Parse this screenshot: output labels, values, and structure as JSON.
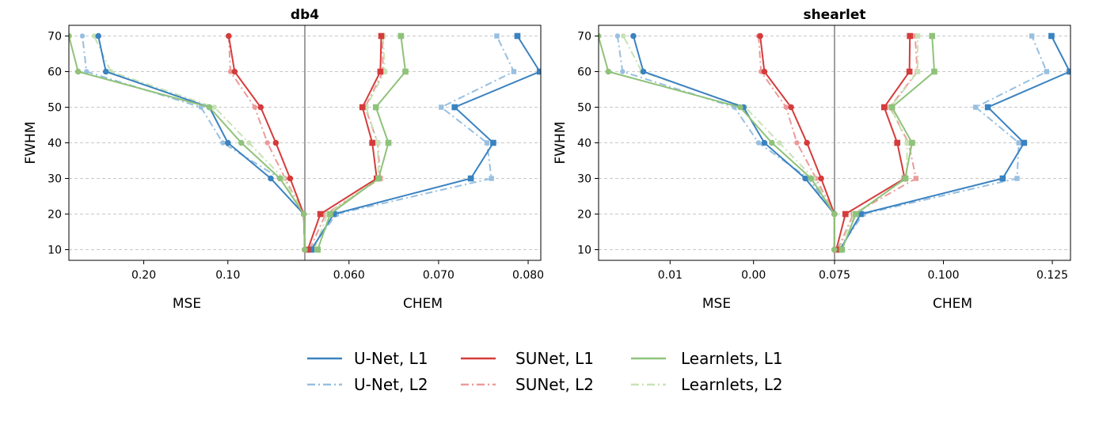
{
  "legend": {
    "placement": "bottom-center",
    "entries": [
      {
        "label": "U-Net, L1",
        "color": "#3a82c0",
        "style": "solid"
      },
      {
        "label": "SUNet, L1",
        "color": "#d63b3b",
        "style": "solid"
      },
      {
        "label": "Learnlets, L1",
        "color": "#8fc27a",
        "style": "solid"
      },
      {
        "label": "U-Net, L2",
        "color": "#97bfe0",
        "style": "dashdot"
      },
      {
        "label": "SUNet, L2",
        "color": "#eb9a9a",
        "style": "dashdot"
      },
      {
        "label": "Learnlets, L2",
        "color": "#c7e2b5",
        "style": "dashdot"
      }
    ]
  },
  "chart_data": [
    {
      "type": "line",
      "title": "db4",
      "ylabel": "FWHM",
      "y": [
        10,
        20,
        30,
        40,
        50,
        60,
        70
      ],
      "ylim": [
        7,
        73
      ],
      "yticks": [
        "10",
        "20",
        "30",
        "40",
        "50",
        "60",
        "70"
      ],
      "grid": "horizontal dashed",
      "left": {
        "xlabel": "MSE",
        "xlim": [
          0.289,
          0.0085
        ],
        "reversed": true,
        "ticks": [
          0.2,
          0.1
        ],
        "tick_labels": [
          "0.20",
          "0.10"
        ],
        "marker": "circle"
      },
      "right": {
        "xlabel": "CHEM",
        "xlim": [
          0.05507,
          0.08141
        ],
        "ticks": [
          0.06,
          0.07,
          0.08
        ],
        "tick_labels": [
          "0.060",
          "0.070",
          "0.080"
        ],
        "marker": "square"
      },
      "series": [
        {
          "name": "U-Net, L1",
          "mse": [
            0.0085,
            0.0098,
            0.049,
            0.1,
            0.122,
            0.245,
            0.254
          ],
          "chem": [
            0.0558,
            0.0583,
            0.0736,
            0.0761,
            0.0718,
            0.0813,
            0.0788
          ]
        },
        {
          "name": "SUNet, L1",
          "mse": [
            0.0085,
            0.0098,
            0.026,
            0.043,
            0.061,
            0.092,
            0.099
          ],
          "chem": [
            0.0554,
            0.0568,
            0.0631,
            0.0626,
            0.0615,
            0.0635,
            0.0636
          ]
        },
        {
          "name": "Learnlets, L1",
          "mse": [
            0.0085,
            0.0098,
            0.038,
            0.084,
            0.122,
            0.278,
            0.289
          ],
          "chem": [
            0.0565,
            0.0579,
            0.0633,
            0.0644,
            0.063,
            0.0663,
            0.0658
          ]
        },
        {
          "name": "U-Net, L2",
          "mse": [
            0.0085,
            0.0098,
            0.038,
            0.106,
            0.132,
            0.268,
            0.273
          ],
          "chem": [
            0.0557,
            0.0586,
            0.0759,
            0.0754,
            0.0703,
            0.0784,
            0.0765
          ]
        },
        {
          "name": "SUNet, L2",
          "mse": [
            0.0085,
            0.0098,
            0.032,
            0.053,
            0.068,
            0.097,
            0.099
          ],
          "chem": [
            0.0556,
            0.0574,
            0.0635,
            0.0632,
            0.0618,
            0.0638,
            0.0637
          ]
        },
        {
          "name": "Learnlets, L2",
          "mse": [
            0.0085,
            0.0098,
            0.034,
            0.075,
            0.116,
            0.239,
            0.259
          ],
          "chem": [
            0.0561,
            0.0576,
            0.0633,
            0.0632,
            0.0619,
            0.064,
            0.0638
          ]
        }
      ]
    },
    {
      "type": "line",
      "title": "shearlet",
      "ylabel": "FWHM",
      "y": [
        10,
        20,
        30,
        40,
        50,
        60,
        70
      ],
      "ylim": [
        7,
        73
      ],
      "yticks": [
        "10",
        "20",
        "30",
        "40",
        "50",
        "60",
        "70"
      ],
      "grid": "horizontal dashed",
      "left": {
        "xlabel": "MSE",
        "xlim": [
          0.01857,
          -0.00971
        ],
        "reversed": true,
        "ticks": [
          0.01,
          0.0
        ],
        "tick_labels": [
          "0.01",
          "0.00"
        ],
        "marker": "circle"
      },
      "right": {
        "xlabel": "CHEM",
        "xlim": [
          0.075,
          0.12917
        ],
        "ticks": [
          0.075,
          0.1,
          0.125
        ],
        "tick_labels": [
          "0.075",
          "0.100",
          "0.125"
        ],
        "marker": "square"
      },
      "series": [
        {
          "name": "U-Net, L1",
          "mse": [
            -0.0097,
            -0.0097,
            -0.0062,
            -0.0013,
            0.0012,
            0.0132,
            0.0144
          ],
          "chem": [
            0.0763,
            0.081,
            0.1136,
            0.1185,
            0.1102,
            0.129,
            0.1248
          ]
        },
        {
          "name": "SUNet, L1",
          "mse": [
            -0.0097,
            -0.0097,
            -0.0081,
            -0.0064,
            -0.0045,
            -0.0013,
            -0.0008
          ],
          "chem": [
            0.0754,
            0.0775,
            0.0911,
            0.0894,
            0.0864,
            0.0922,
            0.0923
          ]
        },
        {
          "name": "Learnlets, L1",
          "mse": [
            -0.0097,
            -0.0097,
            -0.0069,
            -0.0022,
            0.0016,
            0.0174,
            0.0186
          ],
          "chem": [
            0.0767,
            0.0799,
            0.0912,
            0.0928,
            0.0882,
            0.0979,
            0.0974
          ]
        },
        {
          "name": "U-Net, L2",
          "mse": [
            -0.0097,
            -0.0097,
            -0.0066,
            -0.0006,
            0.0023,
            0.0157,
            0.0163
          ],
          "chem": [
            0.0759,
            0.0816,
            0.1169,
            0.1173,
            0.1074,
            0.1237,
            0.1203
          ]
        },
        {
          "name": "SUNet, L2",
          "mse": [
            -0.0097,
            -0.0097,
            -0.0075,
            -0.0052,
            -0.0039,
            -0.0009,
            -0.0006
          ],
          "chem": [
            0.0757,
            0.0793,
            0.0937,
            0.092,
            0.0877,
            0.094,
            0.0935
          ]
        },
        {
          "name": "Learnlets, L2",
          "mse": [
            -0.0097,
            -0.0097,
            -0.0072,
            -0.0031,
            0.001,
            0.0134,
            0.0156
          ],
          "chem": [
            0.076,
            0.0796,
            0.0915,
            0.0917,
            0.0879,
            0.0941,
            0.0941
          ]
        }
      ]
    }
  ]
}
